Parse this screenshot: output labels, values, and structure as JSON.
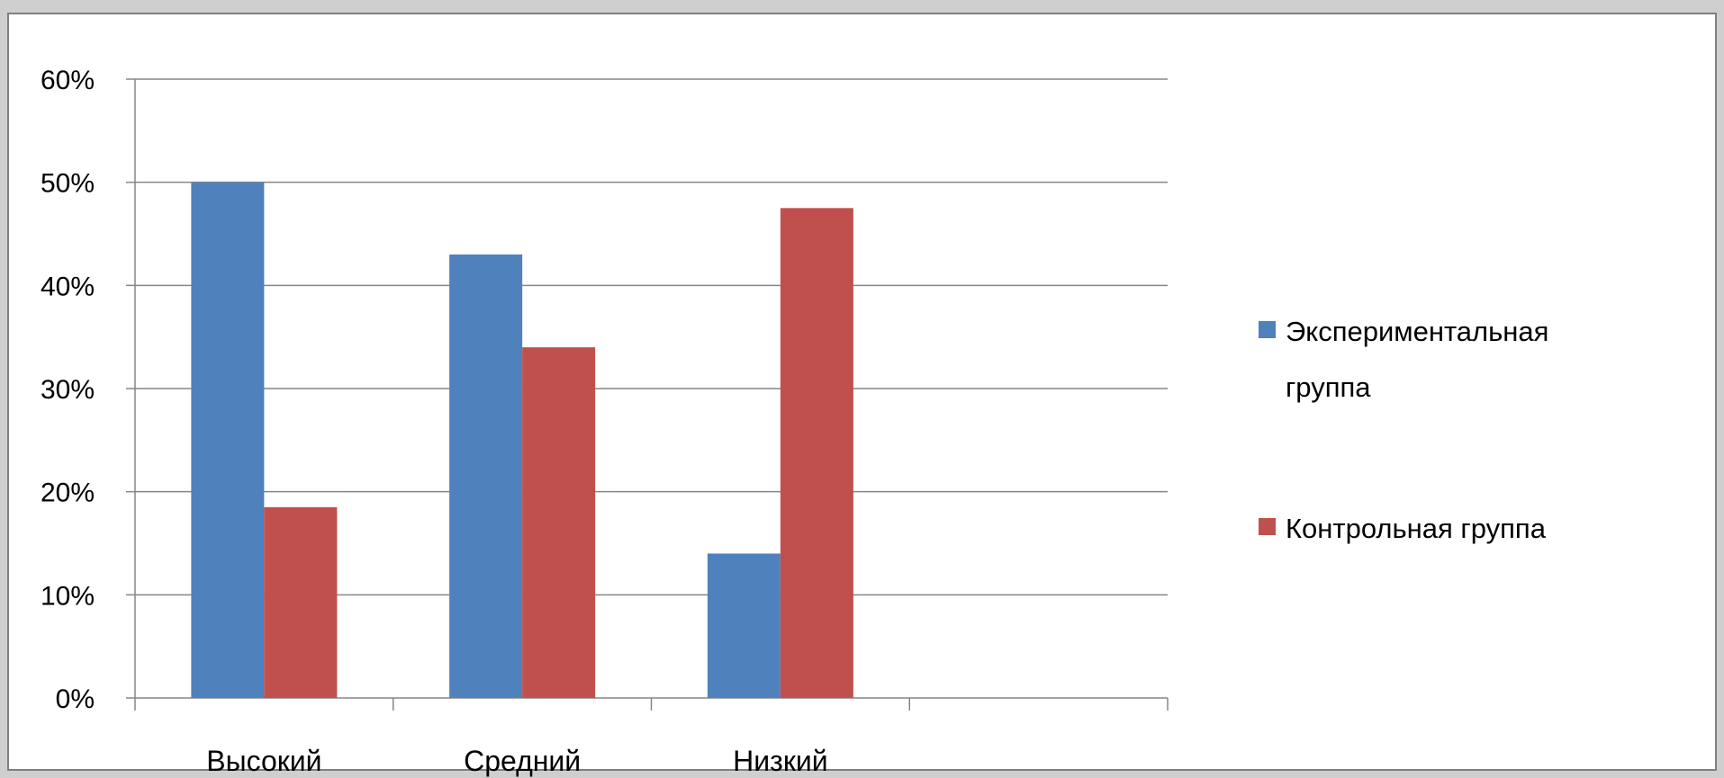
{
  "chart_data": {
    "type": "bar",
    "title": "",
    "xlabel": "",
    "ylabel": "",
    "categories": [
      "Высокий",
      "Средний",
      "Низкий",
      ""
    ],
    "series": [
      {
        "name": "Экспериментальная группа",
        "legend_lines": [
          "Экспериментальная",
          "группа"
        ],
        "color": "#4f81bd",
        "values": [
          50,
          43,
          14,
          null
        ]
      },
      {
        "name": "Контрольная группа",
        "legend_lines": [
          "Контрольная группа"
        ],
        "color": "#c0504d",
        "values": [
          18.5,
          34,
          47.5,
          null
        ]
      }
    ],
    "yticks": [
      "0%",
      "10%",
      "20%",
      "30%",
      "40%",
      "50%",
      "60%"
    ],
    "ylim": [
      0,
      60
    ],
    "grid": true,
    "legend_position": "right",
    "gridline_color": "#868686"
  }
}
